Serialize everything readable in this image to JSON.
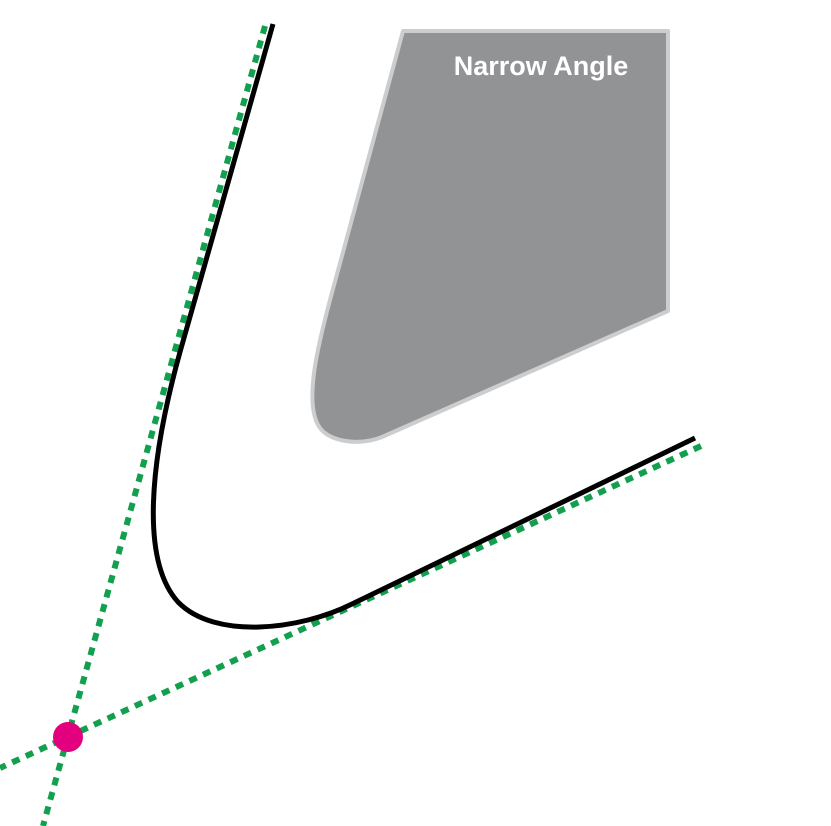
{
  "diagram": {
    "shape_label": "Narrow Angle"
  },
  "colors": {
    "background": "#ffffff",
    "shape_fill": "#929395",
    "shape_stroke": "#cccdcf",
    "label_text": "#ffffff",
    "curve": "#000000",
    "guide_lines": "#12a04f",
    "intersection_point": "#e3007f"
  }
}
